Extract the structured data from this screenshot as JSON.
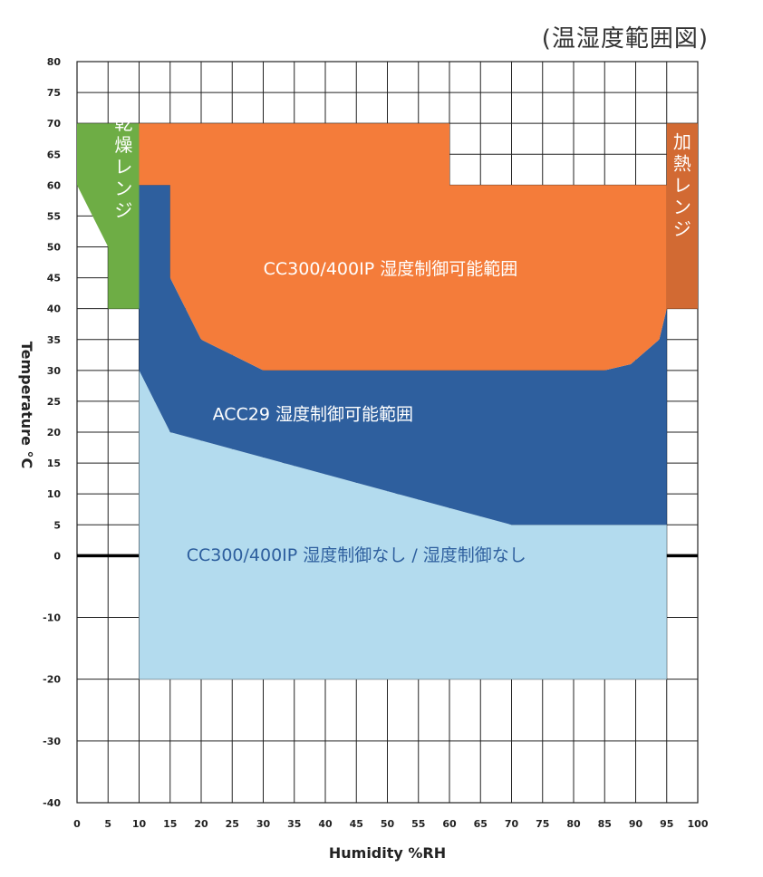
{
  "title": "(温湿度範囲図)",
  "chart_data": {
    "type": "area",
    "title": "(温湿度範囲図)",
    "xlabel": "Humidity %RH",
    "ylabel": "Temperature °C",
    "xlim": [
      0,
      100
    ],
    "ylim": [
      -40,
      80
    ],
    "x_ticks": [
      0,
      5,
      10,
      15,
      20,
      25,
      30,
      35,
      40,
      45,
      50,
      55,
      60,
      65,
      70,
      75,
      80,
      85,
      90,
      95,
      100
    ],
    "y_ticks": [
      80,
      75,
      70,
      65,
      60,
      55,
      50,
      45,
      40,
      35,
      30,
      25,
      20,
      15,
      10,
      5,
      0,
      -10,
      -20,
      -30,
      -40
    ],
    "grid": true,
    "regions": [
      {
        "name": "CC300/400IP 湿度制御なし / 湿度制御なし",
        "color": "#b3dbee",
        "text_color": "#2e5f9e",
        "label_at": [
          45,
          -0.8
        ],
        "points": [
          [
            10,
            -20
          ],
          [
            95,
            -20
          ],
          [
            95,
            5
          ],
          [
            70,
            5
          ],
          [
            15,
            20
          ],
          [
            10,
            30
          ]
        ]
      },
      {
        "name": "ACC29 湿度制御可能範囲",
        "color": "#2e5f9e",
        "text_color": "#ffffff",
        "label_at": [
          38,
          22
        ],
        "points": [
          [
            10,
            30
          ],
          [
            15,
            20
          ],
          [
            70,
            5
          ],
          [
            95,
            5
          ],
          [
            95,
            40
          ],
          [
            93.8,
            35
          ],
          [
            89.2,
            31
          ],
          [
            85,
            30
          ],
          [
            30,
            30
          ],
          [
            20,
            35
          ],
          [
            15,
            45
          ],
          [
            15,
            60
          ],
          [
            10,
            60
          ]
        ]
      },
      {
        "name": "CC300/400IP 湿度制御可能範囲",
        "color": "#f47c3a",
        "text_color": "#ffffff",
        "label_at": [
          50.5,
          45.5
        ],
        "points": [
          [
            10,
            70
          ],
          [
            60,
            70
          ],
          [
            60,
            60
          ],
          [
            95,
            60
          ],
          [
            95,
            40
          ],
          [
            93.8,
            35
          ],
          [
            89.2,
            31
          ],
          [
            85,
            30
          ],
          [
            30,
            30
          ],
          [
            20,
            35
          ],
          [
            15,
            45
          ],
          [
            15,
            60
          ],
          [
            10,
            60
          ]
        ]
      },
      {
        "name": "乾燥レンジ",
        "color": "#6ead45",
        "text_color": "#ffffff",
        "label_at": [
          7.5,
          69
        ],
        "points": [
          [
            0,
            70
          ],
          [
            10,
            70
          ],
          [
            10,
            40
          ],
          [
            5,
            40
          ],
          [
            5,
            50
          ],
          [
            0,
            60
          ]
        ]
      },
      {
        "name": "加熱レンジ",
        "color": "#d26a33",
        "text_color": "#ffffff",
        "label_at": [
          97.5,
          66
        ],
        "points": [
          [
            95,
            70
          ],
          [
            100,
            70
          ],
          [
            100,
            40
          ],
          [
            95,
            40
          ]
        ]
      }
    ],
    "reference_line": {
      "y": 0,
      "color": "#000000"
    }
  }
}
